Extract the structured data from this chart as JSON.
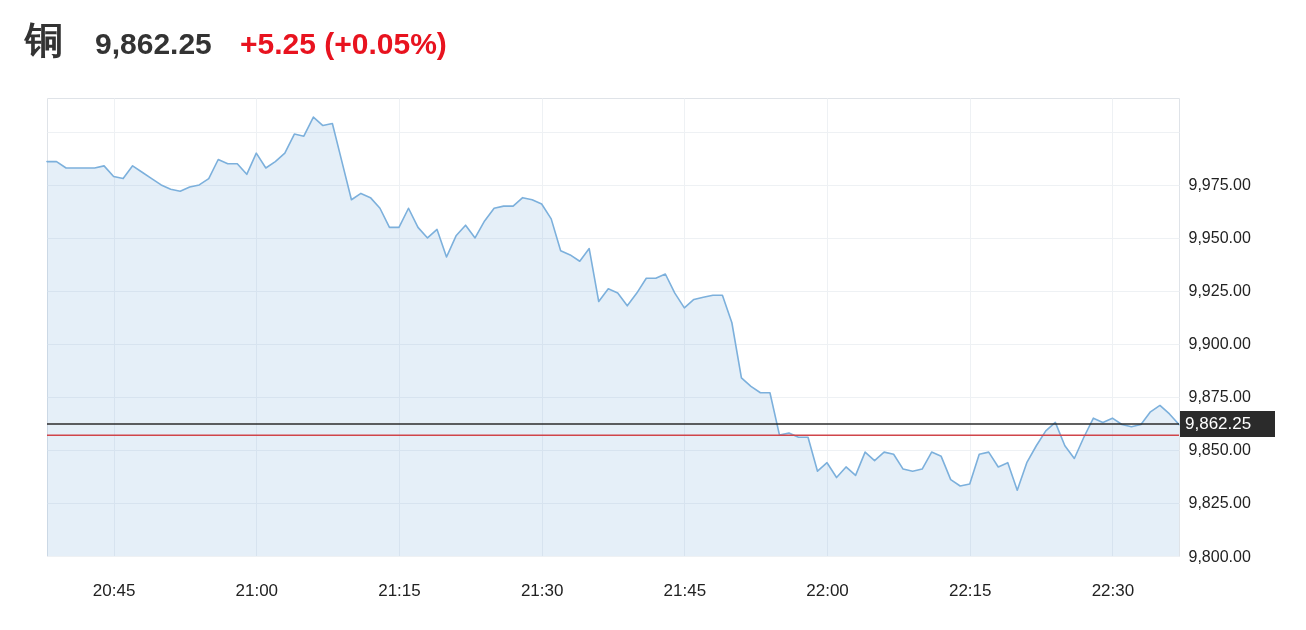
{
  "chart_data": {
    "type": "area",
    "title": "铜",
    "annotations": [
      "9,862.25",
      "+5.25 (+0.05%)"
    ],
    "x": [
      20.6333,
      20.65,
      20.6667,
      20.6833,
      20.7,
      20.7167,
      20.7333,
      20.75,
      20.7667,
      20.7833,
      20.8,
      20.8167,
      20.8333,
      20.85,
      20.8667,
      20.8833,
      20.9,
      20.9167,
      20.9333,
      20.95,
      20.9667,
      20.9833,
      21,
      21.0167,
      21.0333,
      21.05,
      21.0667,
      21.0833,
      21.1,
      21.1167,
      21.1333,
      21.15,
      21.1667,
      21.1833,
      21.2,
      21.2167,
      21.2333,
      21.25,
      21.2667,
      21.2833,
      21.3,
      21.3167,
      21.3333,
      21.35,
      21.3667,
      21.3833,
      21.4,
      21.4167,
      21.4333,
      21.45,
      21.4667,
      21.4833,
      21.5,
      21.5167,
      21.5333,
      21.55,
      21.5667,
      21.5833,
      21.6,
      21.6167,
      21.6333,
      21.65,
      21.6667,
      21.6833,
      21.7,
      21.7167,
      21.7333,
      21.75,
      21.7667,
      21.7833,
      21.8,
      21.8167,
      21.8333,
      21.85,
      21.8667,
      21.8833,
      21.9,
      21.9167,
      21.9333,
      21.95,
      21.9667,
      21.9833,
      22,
      22.0167,
      22.0333,
      22.05,
      22.0667,
      22.0833,
      22.1,
      22.1167,
      22.1333,
      22.15,
      22.1667,
      22.1833,
      22.2,
      22.2167,
      22.2333,
      22.25,
      22.2667,
      22.2833,
      22.3,
      22.3167,
      22.3333,
      22.35,
      22.3667,
      22.3833,
      22.4,
      22.4167,
      22.4333,
      22.45,
      22.4667,
      22.4833,
      22.5,
      22.5167,
      22.5333,
      22.55,
      22.5667,
      22.5833,
      22.6,
      22.6167
    ],
    "series": [
      {
        "color": "#7cb0dc",
        "values": [
          9986,
          9986,
          9983,
          9983,
          9983,
          9983,
          9984,
          9979,
          9978,
          9984,
          9981,
          9978,
          9975,
          9973,
          9972,
          9974,
          9975,
          9978,
          9987,
          9985,
          9985,
          9980,
          9990,
          9983,
          9986,
          9990,
          9999,
          9998,
          10007,
          10003,
          10004,
          9986,
          9968,
          9971,
          9969,
          9964,
          9955,
          9955,
          9964,
          9955,
          9950,
          9954,
          9941,
          9951,
          9956,
          9950,
          9958,
          9964,
          9965,
          9965,
          9969,
          9968,
          9966,
          9959,
          9944,
          9942,
          9939,
          9945,
          9920,
          9926,
          9924,
          9918,
          9924,
          9931,
          9931,
          9933,
          9924,
          9917,
          9921,
          9922,
          9923,
          9923,
          9910,
          9884,
          9880,
          9877,
          9877,
          9857,
          9858,
          9856,
          9856,
          9840,
          9844,
          9837,
          9842,
          9838,
          9849,
          9845,
          9849,
          9848,
          9841,
          9840,
          9841,
          9849,
          9847,
          9836,
          9833,
          9834,
          9848,
          9849,
          9842,
          9844,
          9831,
          9844,
          9852,
          9859,
          9863,
          9852,
          9846,
          9856,
          9865,
          9863,
          9865,
          9862,
          9861,
          9862,
          9868,
          9871,
          9867,
          9862
        ]
      }
    ],
    "xlim": [
      20.6333,
      22.6167
    ],
    "xticks": [
      {
        "value": 20.75,
        "label": "20:45"
      },
      {
        "value": 21,
        "label": "21:00"
      },
      {
        "value": 21.25,
        "label": "21:15"
      },
      {
        "value": 21.5,
        "label": "21:30"
      },
      {
        "value": 21.75,
        "label": "21:45"
      },
      {
        "value": 22,
        "label": "22:00"
      },
      {
        "value": 22.25,
        "label": "22:15"
      },
      {
        "value": 22.5,
        "label": "22:30"
      }
    ],
    "ylim": [
      9800,
      10016
    ],
    "yticks": [
      {
        "value": 9800,
        "label": "9,800.00"
      },
      {
        "value": 9825,
        "label": "9,825.00"
      },
      {
        "value": 9850,
        "label": "9,850.00"
      },
      {
        "value": 9875,
        "label": "9,875.00"
      },
      {
        "value": 9900,
        "label": "9,900.00"
      },
      {
        "value": 9925,
        "label": "9,925.00"
      },
      {
        "value": 9950,
        "label": "9,950.00"
      },
      {
        "value": 9975,
        "label": "9,975.00"
      },
      {
        "value": 10000,
        "label": null
      }
    ],
    "grid": true,
    "ref_lines": [
      {
        "axis": "y",
        "value": 9862.25,
        "label": "9,862.25",
        "color": "#2b2b2b"
      },
      {
        "axis": "y",
        "value": 9857,
        "color": "#d0454a"
      }
    ]
  }
}
